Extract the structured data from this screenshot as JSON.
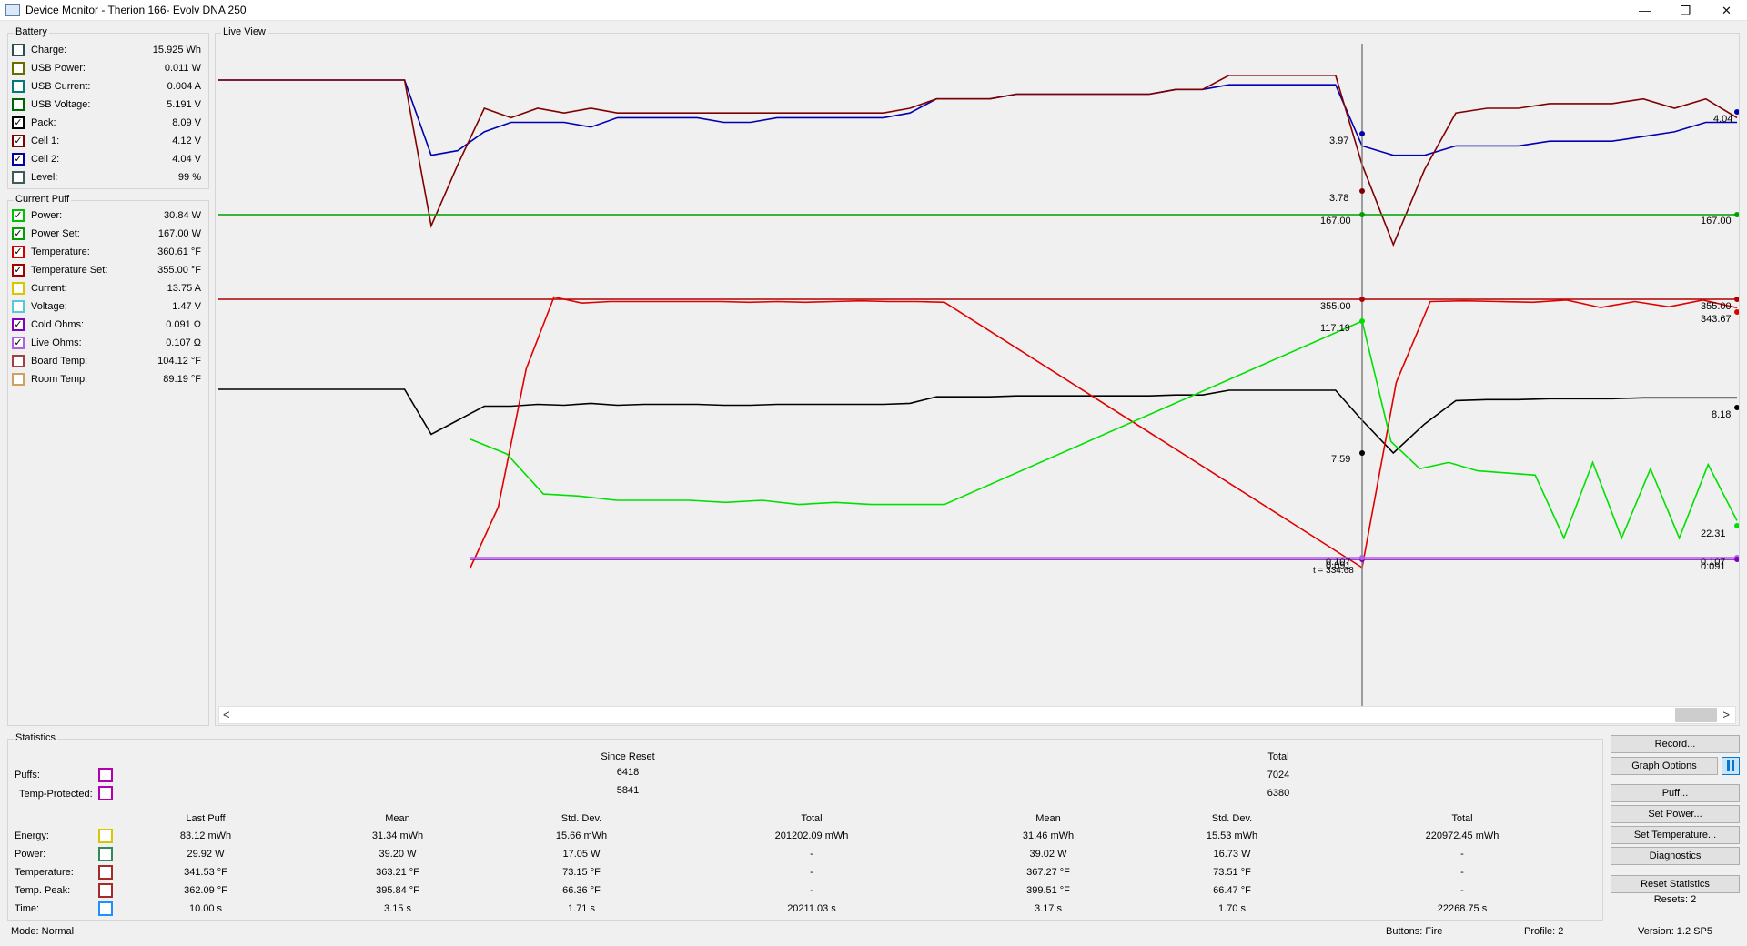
{
  "window": {
    "title": "Device Monitor - Therion 166- Evolv DNA 250",
    "minimize_glyph": "—",
    "maximize_glyph": "❐",
    "close_glyph": "✕"
  },
  "battery": {
    "group_label": "Battery",
    "items": [
      {
        "label": "Charge:",
        "value": "15.925 Wh",
        "checked": false,
        "color": "#2f4f4f"
      },
      {
        "label": "USB Power:",
        "value": "0.011 W",
        "checked": false,
        "color": "#6b6b00"
      },
      {
        "label": "USB Current:",
        "value": "0.004 A",
        "checked": false,
        "color": "#007b7b"
      },
      {
        "label": "USB Voltage:",
        "value": "5.191 V",
        "checked": false,
        "color": "#006400"
      },
      {
        "label": "Pack:",
        "value": "8.09 V",
        "checked": true,
        "color": "#000000"
      },
      {
        "label": "Cell 1:",
        "value": "4.12 V",
        "checked": true,
        "color": "#800000"
      },
      {
        "label": "Cell 2:",
        "value": "4.04 V",
        "checked": true,
        "color": "#0000a0"
      },
      {
        "label": "Level:",
        "value": "99 %",
        "checked": false,
        "color": "#3d5b5b"
      }
    ]
  },
  "current_puff": {
    "group_label": "Current Puff",
    "items": [
      {
        "label": "Power:",
        "value": "30.84 W",
        "checked": true,
        "color": "#00c000"
      },
      {
        "label": "Power Set:",
        "value": "167.00 W",
        "checked": true,
        "color": "#00a000"
      },
      {
        "label": "Temperature:",
        "value": "360.61 °F",
        "checked": true,
        "color": "#d00000"
      },
      {
        "label": "Temperature Set:",
        "value": "355.00 °F",
        "checked": true,
        "color": "#a00000"
      },
      {
        "label": "Current:",
        "value": "13.75 A",
        "checked": false,
        "color": "#d6c800"
      },
      {
        "label": "Voltage:",
        "value": "1.47 V",
        "checked": false,
        "color": "#5ac8d6"
      },
      {
        "label": "Cold Ohms:",
        "value": "0.091 Ω",
        "checked": true,
        "color": "#8000c0"
      },
      {
        "label": "Live Ohms:",
        "value": "0.107 Ω",
        "checked": true,
        "color": "#b060e0"
      },
      {
        "label": "Board Temp:",
        "value": "104.12 °F",
        "checked": false,
        "color": "#a04040"
      },
      {
        "label": "Room Temp:",
        "value": "89.19 °F",
        "checked": false,
        "color": "#d0a060"
      }
    ]
  },
  "live_view": {
    "group_label": "Live View",
    "cursor_label": "t = 334.68",
    "markers": [
      {
        "text": "3.97"
      },
      {
        "text": "3.78"
      },
      {
        "text": "167.00"
      },
      {
        "text": "355.00"
      },
      {
        "text": "117.19"
      },
      {
        "text": "7.59"
      },
      {
        "text": "0.091"
      },
      {
        "text": "0.107"
      },
      {
        "text": "4.04"
      },
      {
        "text": "167.00"
      },
      {
        "text": "355.00"
      },
      {
        "text": "343.67"
      },
      {
        "text": "8.18"
      },
      {
        "text": "22.31"
      },
      {
        "text": "0.107"
      },
      {
        "text": "0.091"
      }
    ],
    "scroll_left": "<",
    "scroll_right": ">"
  },
  "chart_data": {
    "type": "line",
    "title": "",
    "xlabel": "",
    "ylabel": "",
    "x_pixel_note": "",
    "series": [
      {
        "name": "Cell 2:",
        "color": "#0000b0",
        "values": [
          4.13,
          4.13,
          4.13,
          4.13,
          4.13,
          4.13,
          4.13,
          4.13,
          3.97,
          3.98,
          4.02,
          4.04,
          4.04,
          4.04,
          4.03,
          4.05,
          4.05,
          4.05,
          4.05,
          4.04,
          4.04,
          4.05,
          4.05,
          4.05,
          4.05,
          4.05,
          4.06,
          4.09,
          4.09,
          4.09,
          4.1,
          4.1,
          4.1,
          4.1,
          4.1,
          4.1,
          4.11,
          4.11,
          4.12,
          4.12,
          4.12,
          4.12,
          4.12,
          3.99,
          3.97,
          3.97,
          3.99,
          3.99,
          3.99,
          4.0,
          4.0,
          4.0,
          4.01,
          4.02,
          4.04,
          4.04
        ]
      },
      {
        "name": "Cell 1:",
        "color": "#800000",
        "values": [
          4.13,
          4.13,
          4.13,
          4.13,
          4.13,
          4.13,
          4.13,
          4.13,
          3.82,
          3.95,
          4.07,
          4.05,
          4.07,
          4.06,
          4.07,
          4.06,
          4.06,
          4.06,
          4.06,
          4.06,
          4.06,
          4.06,
          4.06,
          4.06,
          4.06,
          4.06,
          4.07,
          4.09,
          4.09,
          4.09,
          4.1,
          4.1,
          4.1,
          4.1,
          4.1,
          4.1,
          4.11,
          4.11,
          4.14,
          4.14,
          4.14,
          4.14,
          4.14,
          3.95,
          3.78,
          3.94,
          4.06,
          4.07,
          4.07,
          4.08,
          4.08,
          4.08,
          4.09,
          4.07,
          4.09,
          4.05
        ]
      },
      {
        "name": "Pack:",
        "color": "#000000",
        "values": [
          8.27,
          8.27,
          8.27,
          8.27,
          8.27,
          8.27,
          8.27,
          8.27,
          7.79,
          7.94,
          8.09,
          8.09,
          8.11,
          8.1,
          8.12,
          8.1,
          8.11,
          8.11,
          8.11,
          8.1,
          8.1,
          8.11,
          8.11,
          8.11,
          8.11,
          8.11,
          8.12,
          8.19,
          8.19,
          8.19,
          8.2,
          8.2,
          8.2,
          8.2,
          8.2,
          8.2,
          8.21,
          8.21,
          8.26,
          8.26,
          8.26,
          8.26,
          8.26,
          7.94,
          7.59,
          7.9,
          8.15,
          8.16,
          8.16,
          8.17,
          8.17,
          8.17,
          8.18,
          8.18,
          8.18,
          8.18
        ]
      },
      {
        "name": "Power Set:",
        "color": "#00a000",
        "values": [
          167.0,
          167.0
        ]
      },
      {
        "name": "Temperature Set:",
        "color": "#b00000",
        "values": [
          355.0,
          355.0
        ]
      },
      {
        "name": "Temperature:",
        "color": "#e00000",
        "values": [
          0,
          80,
          263,
          358,
          350,
          352,
          352,
          352,
          352,
          352,
          351,
          352,
          351,
          352,
          353,
          352,
          352,
          351,
          0,
          245,
          352,
          353,
          352,
          351,
          354,
          344,
          352,
          345,
          354,
          343.67
        ]
      },
      {
        "name": "Power:",
        "color": "#00e000",
        "values": [
          61,
          54,
          35,
          34,
          32,
          32,
          32,
          31,
          32,
          30,
          31,
          30,
          30,
          30,
          117.19,
          60,
          47,
          50,
          46,
          45,
          44,
          14,
          50,
          14,
          47,
          14,
          49,
          22.31
        ]
      },
      {
        "name": "Cold Ohms:",
        "color": "#8000c0",
        "values": [
          0.091,
          0.091
        ]
      },
      {
        "name": "Live Ohms:",
        "color": "#b060e0",
        "values": [
          0.107,
          0.107
        ]
      }
    ]
  },
  "statistics": {
    "group_label": "Statistics",
    "since_reset_label": "Since Reset",
    "total_label": "Total",
    "puffs_label": "Puffs:",
    "temp_protected_label": "Temp-Protected:",
    "puffs_since_reset": "6418",
    "temp_protected_since_reset": "5841",
    "puffs_total": "7024",
    "temp_protected_total": "6380",
    "columns": [
      "Last Puff",
      "Mean",
      "Std. Dev.",
      "Total",
      "Mean",
      "Std. Dev.",
      "Total"
    ],
    "rows": [
      {
        "label": "Energy:",
        "color": "#d6c800",
        "cells": [
          "83.12 mWh",
          "31.34 mWh",
          "15.66 mWh",
          "201202.09 mWh",
          "31.46 mWh",
          "15.53 mWh",
          "220972.45 mWh"
        ]
      },
      {
        "label": "Power:",
        "color": "#2e8b57",
        "cells": [
          "29.92 W",
          "39.20 W",
          "17.05 W",
          "-",
          "39.02 W",
          "16.73 W",
          "-"
        ]
      },
      {
        "label": "Temperature:",
        "color": "#a52a2a",
        "cells": [
          "341.53 °F",
          "363.21 °F",
          "73.15 °F",
          "-",
          "367.27 °F",
          "73.51 °F",
          "-"
        ]
      },
      {
        "label": "Temp. Peak:",
        "color": "#a52a2a",
        "cells": [
          "362.09 °F",
          "395.84 °F",
          "66.36 °F",
          "-",
          "399.51 °F",
          "66.47 °F",
          "-"
        ]
      },
      {
        "label": "Time:",
        "color": "#1e90ff",
        "cells": [
          "10.00 s",
          "3.15 s",
          "1.71 s",
          "20211.03 s",
          "3.17 s",
          "1.70 s",
          "22268.75 s"
        ]
      }
    ]
  },
  "buttons": {
    "record": "Record...",
    "graph_options": "Graph Options",
    "puff": "Puff...",
    "set_power": "Set Power...",
    "set_temperature": "Set Temperature...",
    "diagnostics": "Diagnostics",
    "reset_statistics": "Reset Statistics",
    "resets": "Resets: 2"
  },
  "status_bar": {
    "mode": "Mode: Normal",
    "buttons": "Buttons: Fire",
    "profile": "Profile: 2",
    "version": "Version: 1.2 SP5"
  }
}
